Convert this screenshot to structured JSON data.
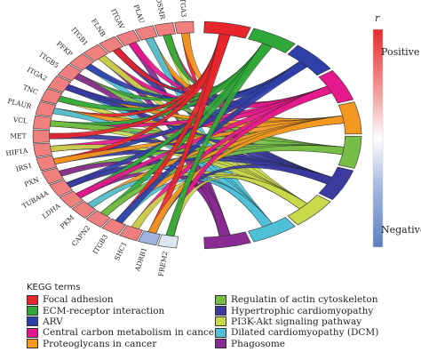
{
  "scale": {
    "title": "r",
    "positive_label": "Positive",
    "negative_label": "Negative",
    "colors": [
      "#e52b2b",
      "#f4a0a0",
      "#ffffff",
      "#a6b9de",
      "#5b7fc4"
    ]
  },
  "genes": [
    {
      "name": "ITGA3",
      "color": "#f08080"
    },
    {
      "name": "OSMR",
      "color": "#f08080"
    },
    {
      "name": "PLAU",
      "color": "#f08080"
    },
    {
      "name": "ITGAV",
      "color": "#f08080"
    },
    {
      "name": "FLNB",
      "color": "#f08080"
    },
    {
      "name": "ITGB1",
      "color": "#f08080"
    },
    {
      "name": "PFKP",
      "color": "#f08080"
    },
    {
      "name": "ITGB5",
      "color": "#f08080"
    },
    {
      "name": "ITGA2",
      "color": "#f08080"
    },
    {
      "name": "TNC",
      "color": "#f08080"
    },
    {
      "name": "PLAUR",
      "color": "#f08080"
    },
    {
      "name": "VCL",
      "color": "#f08080"
    },
    {
      "name": "MET",
      "color": "#f08080"
    },
    {
      "name": "HIF1A",
      "color": "#f08080"
    },
    {
      "name": "IRS1",
      "color": "#f08080"
    },
    {
      "name": "PXN",
      "color": "#f08080"
    },
    {
      "name": "TUBA4A",
      "color": "#f08080"
    },
    {
      "name": "LDHA",
      "color": "#f08080"
    },
    {
      "name": "PKM",
      "color": "#f08080"
    },
    {
      "name": "CAPN2",
      "color": "#f08080"
    },
    {
      "name": "ITGB3",
      "color": "#f08080"
    },
    {
      "name": "SHC1",
      "color": "#f08080"
    },
    {
      "name": "ADRB1",
      "color": "#9fb3dc"
    },
    {
      "name": "FREM2",
      "color": "#dde6f3"
    }
  ],
  "terms": [
    {
      "name": "Focal adhesion",
      "color": "#e8252b"
    },
    {
      "name": "ECM-receptor interaction",
      "color": "#30a838"
    },
    {
      "name": "ARV",
      "color": "#2f3fa8"
    },
    {
      "name": "Central carbon metabolism in cancer",
      "color": "#e6198c"
    },
    {
      "name": "Proteoglycans in cancer",
      "color": "#f39820"
    },
    {
      "name": "Regulatin of actin cytoskeleton",
      "color": "#76be45"
    },
    {
      "name": "Hypertrophic cardiomyopathy",
      "color": "#3a3aa0"
    },
    {
      "name": "PI3K-Akt signaling pathway",
      "color": "#c8d94a"
    },
    {
      "name": "Dilated cardiomyopathy (DCM)",
      "color": "#4ec1d8"
    },
    {
      "name": "Phagosome",
      "color": "#8a2a93"
    }
  ],
  "legend": {
    "title": "KEGG terms"
  }
}
